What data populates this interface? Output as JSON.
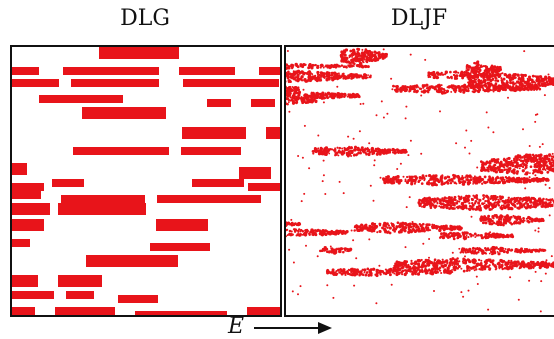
{
  "panels": [
    {
      "title": "DLG"
    },
    {
      "title": "DLJF"
    }
  ],
  "field": {
    "label": "E"
  },
  "colors": {
    "particles": "#e8141a",
    "background": "#ffffff",
    "frame": "#111111"
  }
}
